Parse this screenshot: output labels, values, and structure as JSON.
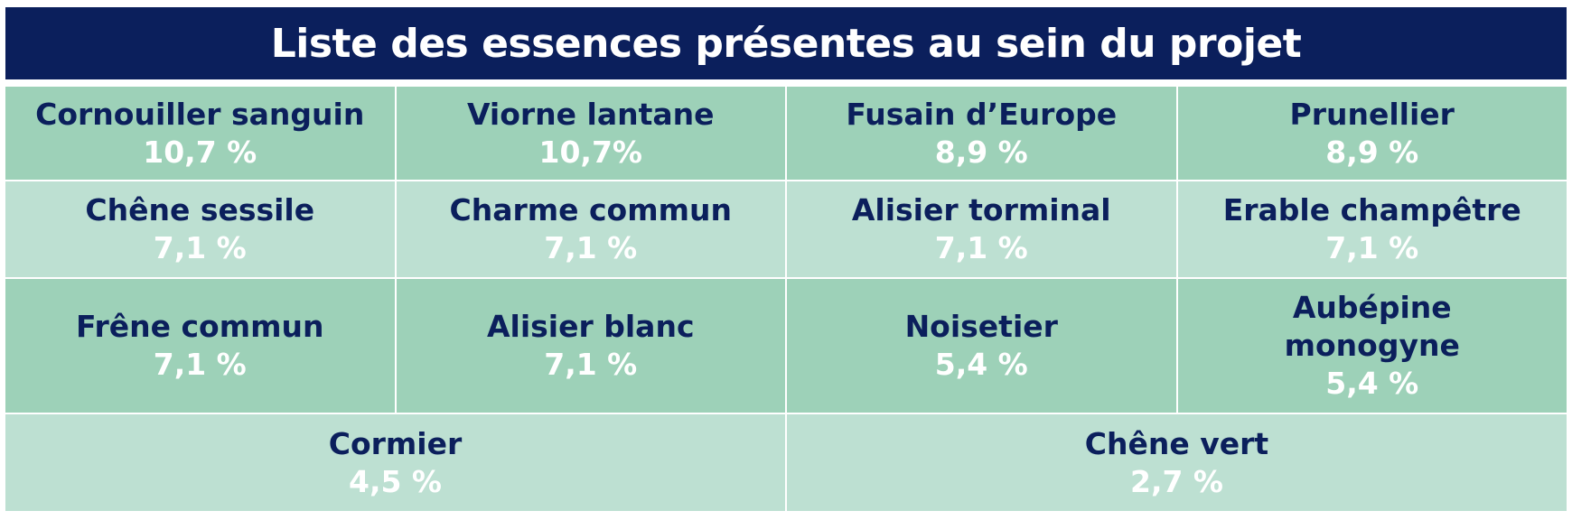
{
  "title": "Liste des essences présentes au sein du projet",
  "rows": [
    [
      {
        "name": "Cornouiller sanguin",
        "pct": "10,7 %"
      },
      {
        "name": "Viorne lantane",
        "pct": "10,7%"
      },
      {
        "name": "Fusain d’Europe",
        "pct": "8,9 %"
      },
      {
        "name": "Prunellier",
        "pct": "8,9 %"
      }
    ],
    [
      {
        "name": "Chêne sessile",
        "pct": "7,1 %"
      },
      {
        "name": "Charme commun",
        "pct": "7,1 %"
      },
      {
        "name": "Alisier torminal",
        "pct": "7,1 %"
      },
      {
        "name": "Erable champêtre",
        "pct": "7,1 %"
      }
    ],
    [
      {
        "name": "Frêne commun",
        "pct": "7,1 %"
      },
      {
        "name": "Alisier blanc",
        "pct": "7,1 %"
      },
      {
        "name": "Noisetier",
        "pct": "5,4 %"
      },
      {
        "name": "Aubépine monogyne",
        "pct": "5,4 %"
      }
    ],
    [
      {
        "name": "Cormier",
        "pct": "4,5 %"
      },
      {
        "name": "Chêne vert",
        "pct": "2,7 %"
      }
    ]
  ],
  "colors": {
    "title_bg": "#0b1f5c",
    "row_dark": "#9dd1b8",
    "row_light": "#bde0d2",
    "name_text": "#0b1f5c",
    "pct_text": "#ffffff"
  }
}
